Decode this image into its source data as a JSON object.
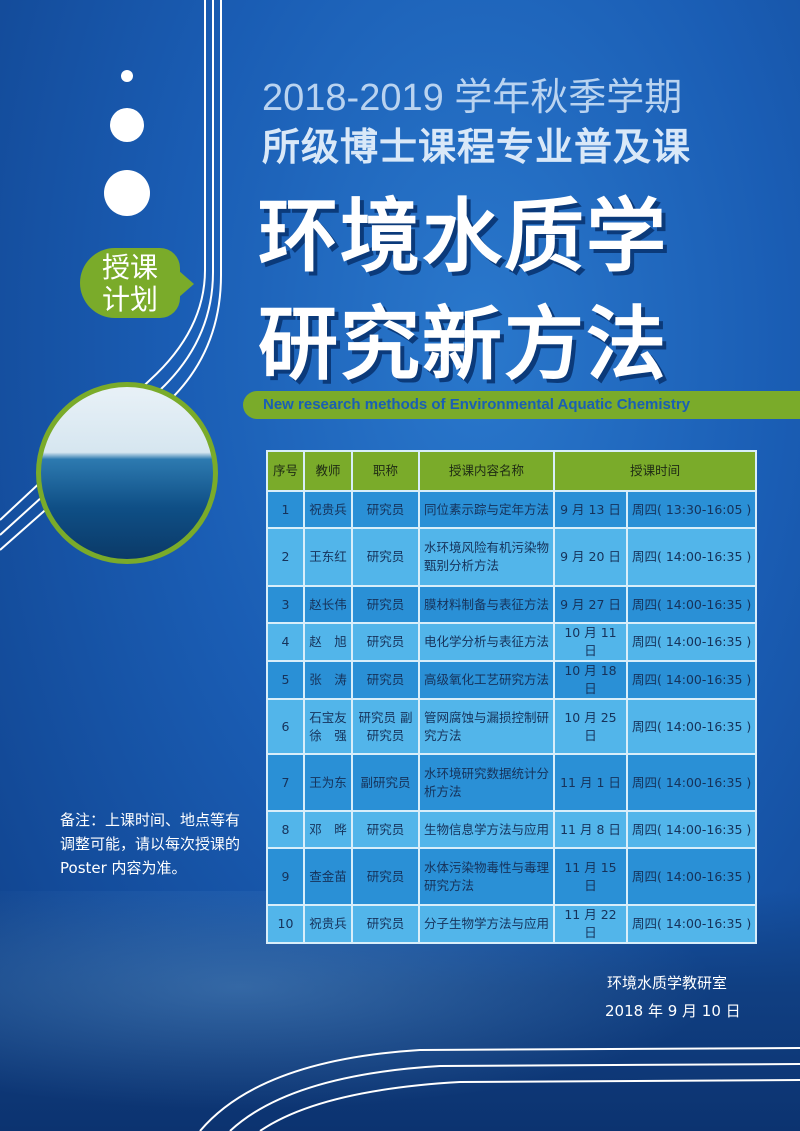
{
  "header": {
    "line1": "2018-2019 学年秋季学期",
    "line2": "所级博士课程专业普及课",
    "title1": "环境水质学",
    "title2": "研究新方法",
    "subtitle_en": "New research methods of Environmental Aquatic Chemistry",
    "badge": "授课计划"
  },
  "colors": {
    "background": "#1a5db4",
    "accent_green": "#7aab2a",
    "row_dark": "#2a90d6",
    "row_light": "#52b5ea"
  },
  "table": {
    "headers": [
      "序号",
      "教师",
      "职称",
      "授课内容名称",
      "授课时间"
    ],
    "rows": [
      {
        "no": "1",
        "teacher": "祝贵兵",
        "title": "研究员",
        "content": "同位素示踪与定年方法",
        "date": "9 月 13 日",
        "time": "周四( 13:30-16:05 )"
      },
      {
        "no": "2",
        "teacher": "王东红",
        "title": "研究员",
        "content": "水环境风险有机污染物甄别分析方法",
        "date": "9 月 20 日",
        "time": "周四( 14:00-16:35 )"
      },
      {
        "no": "3",
        "teacher": "赵长伟",
        "title": "研究员",
        "content": "膜材料制备与表征方法",
        "date": "9 月 27 日",
        "time": "周四( 14:00-16:35 )"
      },
      {
        "no": "4",
        "teacher": "赵　旭",
        "title": "研究员",
        "content": "电化学分析与表征方法",
        "date": "10 月 11 日",
        "time": "周四( 14:00-16:35 )"
      },
      {
        "no": "5",
        "teacher": "张　涛",
        "title": "研究员",
        "content": "高级氧化工艺研究方法",
        "date": "10 月 18 日",
        "time": "周四( 14:00-16:35 )"
      },
      {
        "no": "6",
        "teacher": "石宝友 徐　强",
        "title": "研究员 副研究员",
        "content": "管网腐蚀与漏损控制研究方法",
        "date": "10 月 25 日",
        "time": "周四( 14:00-16:35 )"
      },
      {
        "no": "7",
        "teacher": "王为东",
        "title": "副研究员",
        "content": "水环境研究数据统计分析方法",
        "date": "11 月 1 日",
        "time": "周四( 14:00-16:35 )"
      },
      {
        "no": "8",
        "teacher": "邓　晔",
        "title": "研究员",
        "content": "生物信息学方法与应用",
        "date": "11 月 8 日",
        "time": "周四( 14:00-16:35 )"
      },
      {
        "no": "9",
        "teacher": "查金苗",
        "title": "研究员",
        "content": "水体污染物毒性与毒理研究方法",
        "date": "11 月 15 日",
        "time": "周四( 14:00-16:35 )"
      },
      {
        "no": "10",
        "teacher": "祝贵兵",
        "title": "研究员",
        "content": "分子生物学方法与应用",
        "date": "11 月 22 日",
        "time": "周四( 14:00-16:35 )"
      }
    ]
  },
  "note": "备注：上课时间、地点等有调整可能，请以每次授课的 Poster 内容为准。",
  "footer": {
    "org": "环境水质学教研室",
    "date": "2018 年 9 月 10 日"
  }
}
